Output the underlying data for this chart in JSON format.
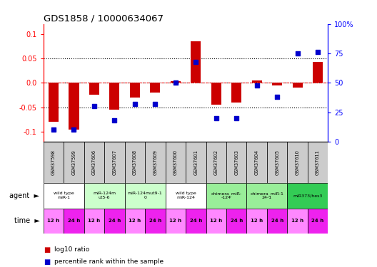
{
  "title": "GDS1858 / 10000634067",
  "samples": [
    "GSM37598",
    "GSM37599",
    "GSM37606",
    "GSM37607",
    "GSM37608",
    "GSM37609",
    "GSM37600",
    "GSM37601",
    "GSM37602",
    "GSM37603",
    "GSM37604",
    "GSM37605",
    "GSM37610",
    "GSM37611"
  ],
  "log10_ratio": [
    -0.08,
    -0.095,
    -0.025,
    -0.055,
    -0.03,
    -0.02,
    0.003,
    0.085,
    -0.045,
    -0.04,
    0.005,
    -0.005,
    -0.01,
    0.042
  ],
  "percentile_rank": [
    10,
    10,
    30,
    18,
    32,
    32,
    50,
    68,
    20,
    20,
    48,
    38,
    75,
    76
  ],
  "agent_groups": [
    {
      "label": "wild type\nmiR-1",
      "cols": [
        0,
        1
      ],
      "color": "#ffffff"
    },
    {
      "label": "miR-124m\nut5-6",
      "cols": [
        2,
        3
      ],
      "color": "#ccffcc"
    },
    {
      "label": "miR-124mut9-1\n0",
      "cols": [
        4,
        5
      ],
      "color": "#ccffcc"
    },
    {
      "label": "wild type\nmiR-124",
      "cols": [
        6,
        7
      ],
      "color": "#ffffff"
    },
    {
      "label": "chimera_miR-\n-124",
      "cols": [
        8,
        9
      ],
      "color": "#99ee99"
    },
    {
      "label": "chimera_miR-1\n24-1",
      "cols": [
        10,
        11
      ],
      "color": "#99ee99"
    },
    {
      "label": "miR373/hes3",
      "cols": [
        12,
        13
      ],
      "color": "#33cc55"
    }
  ],
  "time_labels": [
    "12 h",
    "24 h",
    "12 h",
    "24 h",
    "12 h",
    "24 h",
    "12 h",
    "24 h",
    "12 h",
    "24 h",
    "12 h",
    "24 h",
    "12 h",
    "24 h"
  ],
  "time_color_light": "#ff88ff",
  "time_color_dark": "#ee22ee",
  "bar_color": "#cc0000",
  "dot_color": "#0000cc",
  "ylim_left": [
    -0.12,
    0.12
  ],
  "ylim_right": [
    0,
    100
  ],
  "yticks_left": [
    -0.1,
    -0.05,
    0.0,
    0.05,
    0.1
  ],
  "yticks_right": [
    0,
    25,
    50,
    75,
    100
  ],
  "ytick_labels_right": [
    "0",
    "25",
    "50",
    "75",
    "100%"
  ],
  "dotted_lines": [
    -0.05,
    0.05
  ],
  "zero_line": 0.0,
  "sample_bg_color": "#cccccc",
  "bar_width": 0.5,
  "dot_size": 18
}
